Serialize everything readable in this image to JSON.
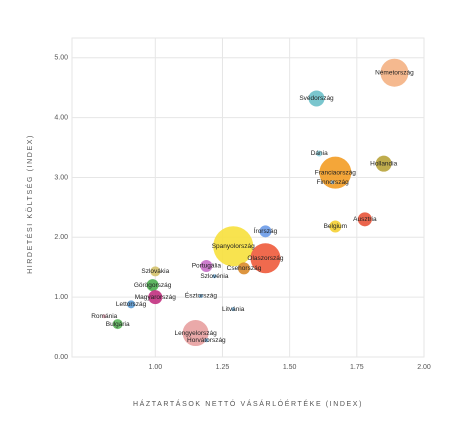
{
  "chart_data": {
    "type": "bubble",
    "x_label": "HÁZTARTÁSOK NETTÓ VÁSÁRLÓÉRTÉKE (INDEX)",
    "y_label": "HIRDETÉSI KÖLTSÉG (INDEX)",
    "xlim": [
      0.69,
      2.0
    ],
    "ylim": [
      0,
      5.33
    ],
    "xticks": [
      {
        "value": 1,
        "label": "1.00"
      },
      {
        "value": 1.25,
        "label": "1.25"
      },
      {
        "value": 1.5,
        "label": "1.50"
      },
      {
        "value": 1.75,
        "label": "1.75"
      },
      {
        "value": 2,
        "label": "2.00"
      }
    ],
    "yticks": [
      {
        "value": 0,
        "label": "0.00"
      },
      {
        "value": 1,
        "label": "1.00"
      },
      {
        "value": 2,
        "label": "2.00"
      },
      {
        "value": 3,
        "label": "3.00"
      },
      {
        "value": 4,
        "label": "4.00"
      },
      {
        "value": 5,
        "label": "5.00"
      }
    ],
    "grid": true,
    "points": [
      {
        "name": "Németország",
        "x": 1.89,
        "y": 4.75,
        "size": 14,
        "color": "#f4b183"
      },
      {
        "name": "Svédország",
        "x": 1.6,
        "y": 4.32,
        "size": 8,
        "color": "#6cc0c9"
      },
      {
        "name": "Dánia",
        "x": 1.61,
        "y": 3.4,
        "size": 3,
        "color": "#8fd3e0"
      },
      {
        "name": "Franciaország",
        "x": 1.67,
        "y": 3.08,
        "size": 16,
        "color": "#f39c24"
      },
      {
        "name": "Finnország",
        "x": 1.66,
        "y": 2.92,
        "size": 2,
        "color": "#9bc4e2"
      },
      {
        "name": "Hollandia",
        "x": 1.85,
        "y": 3.23,
        "size": 8,
        "color": "#b8a33a"
      },
      {
        "name": "Ausztria",
        "x": 1.78,
        "y": 2.3,
        "size": 7,
        "color": "#e8543a"
      },
      {
        "name": "Belgium",
        "x": 1.67,
        "y": 2.18,
        "size": 6,
        "color": "#f5d033"
      },
      {
        "name": "Írország",
        "x": 1.41,
        "y": 2.1,
        "size": 6,
        "color": "#6b9be8"
      },
      {
        "name": "Spanyolország",
        "x": 1.29,
        "y": 1.85,
        "size": 20,
        "color": "#f7e03c"
      },
      {
        "name": "Olaszország",
        "x": 1.41,
        "y": 1.65,
        "size": 15,
        "color": "#ee5a3b"
      },
      {
        "name": "Portugália",
        "x": 1.19,
        "y": 1.52,
        "size": 6,
        "color": "#c76fc8"
      },
      {
        "name": "Csehország",
        "x": 1.33,
        "y": 1.48,
        "size": 6,
        "color": "#d98a2b"
      },
      {
        "name": "Szlovénia",
        "x": 1.22,
        "y": 1.35,
        "size": 2,
        "color": "#7fb8e0"
      },
      {
        "name": "Szlovákia",
        "x": 1.0,
        "y": 1.43,
        "size": 5,
        "color": "#d4c26b"
      },
      {
        "name": "Görögország",
        "x": 0.99,
        "y": 1.2,
        "size": 6,
        "color": "#4caf50"
      },
      {
        "name": "Magyarország",
        "x": 1.0,
        "y": 1.0,
        "size": 7,
        "color": "#c2307f"
      },
      {
        "name": "Észtország",
        "x": 1.17,
        "y": 1.02,
        "size": 2,
        "color": "#7fb8e0"
      },
      {
        "name": "Lettország",
        "x": 0.91,
        "y": 0.88,
        "size": 4,
        "color": "#5b9bd5"
      },
      {
        "name": "Litvánia",
        "x": 1.29,
        "y": 0.8,
        "size": 2,
        "color": "#7fb8e0"
      },
      {
        "name": "Románia",
        "x": 0.81,
        "y": 0.68,
        "size": 2,
        "color": "#f2b8c6"
      },
      {
        "name": "Bulgária",
        "x": 0.86,
        "y": 0.55,
        "size": 5,
        "color": "#5cb85c"
      },
      {
        "name": "Lengyelország",
        "x": 1.15,
        "y": 0.4,
        "size": 13,
        "color": "#e8a0a0"
      },
      {
        "name": "Horvátország",
        "x": 1.19,
        "y": 0.28,
        "size": 2,
        "color": "#7fb8e0"
      }
    ]
  }
}
